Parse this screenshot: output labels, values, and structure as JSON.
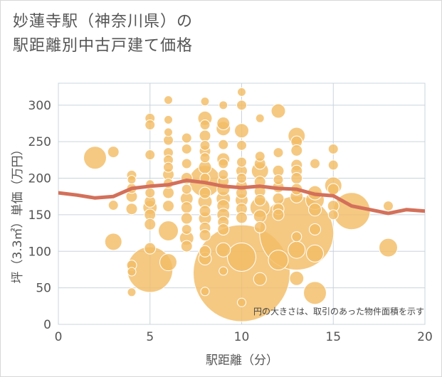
{
  "header": {
    "title_line1": "妙蓮寺駅（神奈川県）の",
    "title_line2": "駅距離別中古戸建て価格"
  },
  "colors": {
    "bubble": "#f3bd67",
    "bubble_stroke": "#ffffff",
    "trend": "#d4705a",
    "grid": "#c9d4dc",
    "axis": "#555555"
  },
  "chart_data": {
    "type": "scatter",
    "xlabel": "駅距離（分）",
    "ylabel": "坪（3.3㎡）単価（万円）",
    "xlim": [
      0,
      20
    ],
    "ylim": [
      0,
      330
    ],
    "xticks": [
      0,
      5,
      10,
      15,
      20
    ],
    "yticks": [
      0,
      50,
      100,
      150,
      200,
      250,
      300
    ],
    "grid": true,
    "note": "円の大きさは、取引のあった物件面積を示す",
    "points": [
      {
        "x": 2,
        "y": 228,
        "s": 16
      },
      {
        "x": 3,
        "y": 236,
        "s": 8
      },
      {
        "x": 3,
        "y": 113,
        "s": 12
      },
      {
        "x": 3,
        "y": 163,
        "s": 7
      },
      {
        "x": 4,
        "y": 204,
        "s": 7
      },
      {
        "x": 4,
        "y": 198,
        "s": 6
      },
      {
        "x": 4,
        "y": 186,
        "s": 7
      },
      {
        "x": 4,
        "y": 175,
        "s": 8
      },
      {
        "x": 4,
        "y": 158,
        "s": 8
      },
      {
        "x": 4,
        "y": 81,
        "s": 7
      },
      {
        "x": 4,
        "y": 44,
        "s": 6
      },
      {
        "x": 4,
        "y": 72,
        "s": 6
      },
      {
        "x": 5,
        "y": 282,
        "s": 7
      },
      {
        "x": 5,
        "y": 273,
        "s": 7
      },
      {
        "x": 5,
        "y": 232,
        "s": 7
      },
      {
        "x": 5,
        "y": 192,
        "s": 6
      },
      {
        "x": 5,
        "y": 180,
        "s": 7
      },
      {
        "x": 5,
        "y": 168,
        "s": 8
      },
      {
        "x": 5,
        "y": 160,
        "s": 10
      },
      {
        "x": 5,
        "y": 150,
        "s": 8
      },
      {
        "x": 5,
        "y": 137,
        "s": 8
      },
      {
        "x": 5,
        "y": 104,
        "s": 8
      },
      {
        "x": 5,
        "y": 75,
        "s": 32
      },
      {
        "x": 6,
        "y": 307,
        "s": 6
      },
      {
        "x": 6,
        "y": 280,
        "s": 6
      },
      {
        "x": 6,
        "y": 263,
        "s": 6
      },
      {
        "x": 6,
        "y": 252,
        "s": 7
      },
      {
        "x": 6,
        "y": 235,
        "s": 7
      },
      {
        "x": 6,
        "y": 225,
        "s": 7
      },
      {
        "x": 6,
        "y": 215,
        "s": 7
      },
      {
        "x": 6,
        "y": 205,
        "s": 8
      },
      {
        "x": 6,
        "y": 193,
        "s": 7
      },
      {
        "x": 6,
        "y": 180,
        "s": 8
      },
      {
        "x": 6,
        "y": 162,
        "s": 8
      },
      {
        "x": 6,
        "y": 128,
        "s": 14
      },
      {
        "x": 6,
        "y": 85,
        "s": 12
      },
      {
        "x": 7,
        "y": 255,
        "s": 7
      },
      {
        "x": 7,
        "y": 240,
        "s": 7
      },
      {
        "x": 7,
        "y": 220,
        "s": 7
      },
      {
        "x": 7,
        "y": 200,
        "s": 8
      },
      {
        "x": 7,
        "y": 185,
        "s": 7
      },
      {
        "x": 7,
        "y": 172,
        "s": 9
      },
      {
        "x": 7,
        "y": 160,
        "s": 8
      },
      {
        "x": 7,
        "y": 145,
        "s": 8
      },
      {
        "x": 7,
        "y": 130,
        "s": 7
      },
      {
        "x": 7,
        "y": 118,
        "s": 10
      },
      {
        "x": 7,
        "y": 107,
        "s": 8
      },
      {
        "x": 8,
        "y": 305,
        "s": 6
      },
      {
        "x": 8,
        "y": 282,
        "s": 10
      },
      {
        "x": 8,
        "y": 273,
        "s": 7
      },
      {
        "x": 8,
        "y": 258,
        "s": 8
      },
      {
        "x": 8,
        "y": 245,
        "s": 7
      },
      {
        "x": 8,
        "y": 237,
        "s": 8
      },
      {
        "x": 8,
        "y": 228,
        "s": 7
      },
      {
        "x": 8,
        "y": 215,
        "s": 9
      },
      {
        "x": 8,
        "y": 200,
        "s": 7
      },
      {
        "x": 8,
        "y": 196,
        "s": 22
      },
      {
        "x": 8,
        "y": 180,
        "s": 8
      },
      {
        "x": 8,
        "y": 168,
        "s": 10
      },
      {
        "x": 8,
        "y": 155,
        "s": 8
      },
      {
        "x": 8,
        "y": 145,
        "s": 9
      },
      {
        "x": 8,
        "y": 132,
        "s": 8
      },
      {
        "x": 8,
        "y": 122,
        "s": 8
      },
      {
        "x": 8,
        "y": 100,
        "s": 8
      },
      {
        "x": 8,
        "y": 90,
        "s": 9
      },
      {
        "x": 8,
        "y": 45,
        "s": 6
      },
      {
        "x": 9,
        "y": 300,
        "s": 6
      },
      {
        "x": 9,
        "y": 275,
        "s": 9
      },
      {
        "x": 9,
        "y": 268,
        "s": 10
      },
      {
        "x": 9,
        "y": 246,
        "s": 7
      },
      {
        "x": 9,
        "y": 226,
        "s": 9
      },
      {
        "x": 9,
        "y": 220,
        "s": 7
      },
      {
        "x": 9,
        "y": 205,
        "s": 7
      },
      {
        "x": 9,
        "y": 196,
        "s": 8
      },
      {
        "x": 9,
        "y": 185,
        "s": 9
      },
      {
        "x": 9,
        "y": 172,
        "s": 10
      },
      {
        "x": 9,
        "y": 162,
        "s": 9
      },
      {
        "x": 9,
        "y": 150,
        "s": 9
      },
      {
        "x": 9,
        "y": 140,
        "s": 8
      },
      {
        "x": 9,
        "y": 130,
        "s": 8
      },
      {
        "x": 9,
        "y": 102,
        "s": 10
      },
      {
        "x": 9,
        "y": 73,
        "s": 6
      },
      {
        "x": 10,
        "y": 318,
        "s": 6
      },
      {
        "x": 10,
        "y": 300,
        "s": 7
      },
      {
        "x": 10,
        "y": 265,
        "s": 10
      },
      {
        "x": 10,
        "y": 245,
        "s": 7
      },
      {
        "x": 10,
        "y": 222,
        "s": 7
      },
      {
        "x": 10,
        "y": 210,
        "s": 8
      },
      {
        "x": 10,
        "y": 200,
        "s": 7
      },
      {
        "x": 10,
        "y": 190,
        "s": 8
      },
      {
        "x": 10,
        "y": 180,
        "s": 8
      },
      {
        "x": 10,
        "y": 170,
        "s": 9
      },
      {
        "x": 10,
        "y": 158,
        "s": 8
      },
      {
        "x": 10,
        "y": 146,
        "s": 8
      },
      {
        "x": 10,
        "y": 70,
        "s": 68
      },
      {
        "x": 10,
        "y": 92,
        "s": 20
      },
      {
        "x": 10,
        "y": 30,
        "s": 6
      },
      {
        "x": 11,
        "y": 282,
        "s": 6
      },
      {
        "x": 11,
        "y": 230,
        "s": 7
      },
      {
        "x": 11,
        "y": 220,
        "s": 8
      },
      {
        "x": 11,
        "y": 210,
        "s": 12
      },
      {
        "x": 11,
        "y": 195,
        "s": 8
      },
      {
        "x": 11,
        "y": 182,
        "s": 8
      },
      {
        "x": 11,
        "y": 170,
        "s": 8
      },
      {
        "x": 11,
        "y": 160,
        "s": 14
      },
      {
        "x": 11,
        "y": 148,
        "s": 9
      },
      {
        "x": 11,
        "y": 133,
        "s": 8
      },
      {
        "x": 11,
        "y": 62,
        "s": 9
      },
      {
        "x": 12,
        "y": 292,
        "s": 10
      },
      {
        "x": 12,
        "y": 235,
        "s": 7
      },
      {
        "x": 12,
        "y": 210,
        "s": 8
      },
      {
        "x": 12,
        "y": 198,
        "s": 7
      },
      {
        "x": 12,
        "y": 188,
        "s": 8
      },
      {
        "x": 12,
        "y": 172,
        "s": 8
      },
      {
        "x": 12,
        "y": 158,
        "s": 8
      },
      {
        "x": 12,
        "y": 150,
        "s": 8
      },
      {
        "x": 12,
        "y": 88,
        "s": 14
      },
      {
        "x": 13,
        "y": 258,
        "s": 12
      },
      {
        "x": 13,
        "y": 250,
        "s": 8
      },
      {
        "x": 13,
        "y": 238,
        "s": 8
      },
      {
        "x": 13,
        "y": 218,
        "s": 8
      },
      {
        "x": 13,
        "y": 210,
        "s": 8
      },
      {
        "x": 13,
        "y": 200,
        "s": 8
      },
      {
        "x": 13,
        "y": 185,
        "s": 8
      },
      {
        "x": 13,
        "y": 175,
        "s": 9
      },
      {
        "x": 13,
        "y": 125,
        "s": 52
      },
      {
        "x": 13,
        "y": 120,
        "s": 7
      },
      {
        "x": 13,
        "y": 102,
        "s": 12
      },
      {
        "x": 13,
        "y": 63,
        "s": 10
      },
      {
        "x": 14,
        "y": 220,
        "s": 7
      },
      {
        "x": 14,
        "y": 180,
        "s": 10
      },
      {
        "x": 14,
        "y": 170,
        "s": 13
      },
      {
        "x": 14,
        "y": 157,
        "s": 9
      },
      {
        "x": 14,
        "y": 130,
        "s": 8
      },
      {
        "x": 14,
        "y": 97,
        "s": 12
      },
      {
        "x": 14,
        "y": 43,
        "s": 16
      },
      {
        "x": 15,
        "y": 240,
        "s": 7
      },
      {
        "x": 15,
        "y": 218,
        "s": 7
      },
      {
        "x": 15,
        "y": 190,
        "s": 12
      },
      {
        "x": 15,
        "y": 185,
        "s": 8
      },
      {
        "x": 15,
        "y": 162,
        "s": 8
      },
      {
        "x": 15,
        "y": 150,
        "s": 7
      },
      {
        "x": 16,
        "y": 155,
        "s": 26
      },
      {
        "x": 18,
        "y": 162,
        "s": 7
      },
      {
        "x": 18,
        "y": 105,
        "s": 13
      }
    ],
    "trend": {
      "x": [
        0,
        1,
        2,
        3,
        4,
        5,
        6,
        7,
        8,
        9,
        10,
        11,
        12,
        13,
        14,
        15,
        16,
        17,
        18,
        19,
        20
      ],
      "y": [
        180,
        177,
        173,
        175,
        186,
        189,
        191,
        197,
        194,
        189,
        187,
        189,
        186,
        185,
        178,
        176,
        162,
        157,
        152,
        157,
        155
      ]
    }
  }
}
